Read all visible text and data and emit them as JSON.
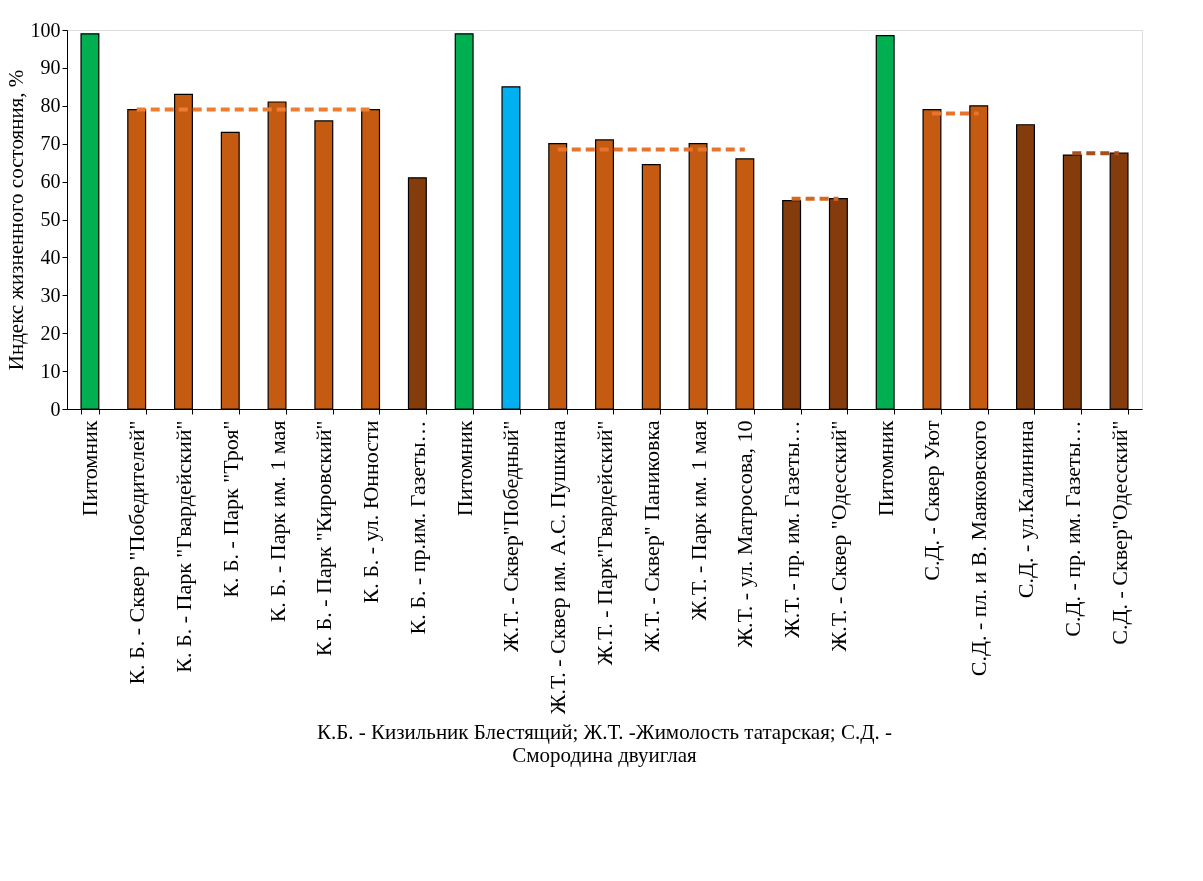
{
  "chart_data": {
    "type": "bar",
    "ylabel": "Индекс жизненного состояния, %",
    "xlabel": "К.Б. - Кизильник Блестящий; Ж.Т. -Жимолость татарская; С.Д. - Смородина двуиглая",
    "categories": [
      "Питомник",
      "К. Б. - Сквер \"Победителей\"",
      "К. Б. - Парк \"Гвардейский\"",
      "К. Б. - Парк \"Троя\"",
      "К. Б. - Парк им. 1 мая",
      "К. Б. - Парк \"Кировский\"",
      "К. Б. - ул. Юнности",
      "К. Б. - пр.им. Газеты…",
      "Питомник",
      "Ж.Т. - Сквер\"Победный\"",
      "Ж.Т. - Сквер им. А.С. Пушкина",
      "Ж.Т. - Парк\"Гвардейский\"",
      "Ж.Т. - Сквер\" Паниковка",
      "Ж.Т. - Парк им. 1 мая",
      "Ж.Т. - ул. Матросова, 10",
      "Ж.Т. - пр. им. Газеты…",
      "Ж.Т. - Сквер \"Одесский\"",
      "Питомник",
      "С.Д. - Сквер Уют",
      "С.Д. - пл. и В. Маяковского",
      "С.Д. - ул.Калинина",
      "С.Д. - пр. им. Газеты…",
      "С.Д. - Сквер\"Одесский\""
    ],
    "values": [
      99,
      79,
      83,
      73,
      81,
      76,
      79,
      61,
      99,
      85,
      70,
      71,
      64.5,
      70,
      66,
      55,
      55.5,
      98.5,
      79,
      80,
      75,
      67,
      67.5
    ],
    "colors": [
      "#00b050",
      "#c55a11",
      "#c55a11",
      "#c55a11",
      "#c55a11",
      "#c55a11",
      "#c55a11",
      "#843c0c",
      "#00b050",
      "#00b0f0",
      "#c55a11",
      "#c55a11",
      "#c55a11",
      "#c55a11",
      "#c55a11",
      "#843c0c",
      "#843c0c",
      "#00b050",
      "#c55a11",
      "#c55a11",
      "#843c0c",
      "#843c0c",
      "#843c0c"
    ],
    "series": [
      {
        "type": "line",
        "color": "#ed7d31",
        "line_style": "dashed",
        "values": [
          null,
          79,
          79,
          79,
          79,
          79,
          79,
          null,
          null,
          null,
          null,
          null,
          null,
          null,
          null,
          null,
          null,
          null,
          null,
          null,
          null,
          null,
          null
        ]
      },
      {
        "type": "line",
        "color": "#e8732a",
        "line_style": "dashed",
        "values": [
          null,
          null,
          null,
          null,
          null,
          null,
          null,
          null,
          null,
          null,
          68.5,
          68.5,
          68.5,
          68.5,
          68.5,
          null,
          null,
          null,
          null,
          null,
          null,
          null,
          null
        ]
      },
      {
        "type": "line",
        "color": "#d2691e",
        "line_style": "dashed",
        "values": [
          null,
          null,
          null,
          null,
          null,
          null,
          null,
          null,
          null,
          null,
          null,
          null,
          null,
          null,
          null,
          55.5,
          55.5,
          null,
          null,
          null,
          null,
          null,
          null
        ]
      },
      {
        "type": "line",
        "color": "#e8732a",
        "line_style": "dashed",
        "values": [
          null,
          null,
          null,
          null,
          null,
          null,
          null,
          null,
          null,
          null,
          null,
          null,
          null,
          null,
          null,
          null,
          null,
          null,
          78,
          78,
          null,
          null,
          null
        ]
      },
      {
        "type": "line",
        "color": "#a5501c",
        "line_style": "dashed",
        "values": [
          null,
          null,
          null,
          null,
          null,
          null,
          null,
          null,
          null,
          null,
          null,
          null,
          null,
          null,
          null,
          null,
          null,
          null,
          null,
          null,
          null,
          67.5,
          67.5
        ]
      }
    ],
    "ylim": [
      0,
      100
    ],
    "yticks": [
      0,
      10,
      20,
      30,
      40,
      50,
      60,
      70,
      80,
      90,
      100
    ],
    "grid": false
  }
}
